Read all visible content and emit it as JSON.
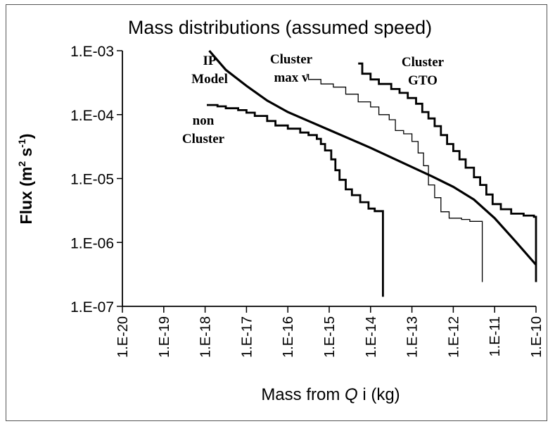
{
  "chart_data": {
    "type": "line",
    "title": "Mass distributions (assumed speed)",
    "xlabel": "Mass from Q i (kg)",
    "xlabel_parts": {
      "prefix": "Mass from ",
      "italic": "Q",
      "suffix": " i (kg)"
    },
    "ylabel": "Flux (m2 s-1)",
    "ylabel_parts": {
      "prefix": "Flux (m",
      "sup1": "2",
      "mid": " s",
      "sup2": "-1",
      "suffix": ")"
    },
    "x_scale": "log10",
    "y_scale": "log10",
    "xlim_log": [
      -20,
      -10
    ],
    "ylim_log": [
      -7,
      -3
    ],
    "x_ticks": [
      {
        "label": "1.E-20",
        "log": -20
      },
      {
        "label": "1.E-19",
        "log": -19
      },
      {
        "label": "1.E-18",
        "log": -18
      },
      {
        "label": "1.E-17",
        "log": -17
      },
      {
        "label": "1.E-16",
        "log": -16
      },
      {
        "label": "1.E-15",
        "log": -15
      },
      {
        "label": "1.E-14",
        "log": -14
      },
      {
        "label": "1.E-13",
        "log": -13
      },
      {
        "label": "1.E-12",
        "log": -12
      },
      {
        "label": "1.E-11",
        "log": -11
      },
      {
        "label": "1.E-10",
        "log": -10
      }
    ],
    "y_ticks": [
      {
        "label": "1.E-03",
        "log": -3
      },
      {
        "label": "1.E-04",
        "log": -4
      },
      {
        "label": "1.E-05",
        "log": -5
      },
      {
        "label": "1.E-06",
        "log": -6
      },
      {
        "label": "1.E-07",
        "log": -7
      }
    ],
    "grid": false,
    "series": [
      {
        "name": "IP Model",
        "label_lines": [
          "IP",
          "Model"
        ],
        "style": "thick-curve",
        "points_log": [
          [
            -17.9,
            -3.0
          ],
          [
            -17.5,
            -3.3
          ],
          [
            -17.0,
            -3.55
          ],
          [
            -16.5,
            -3.78
          ],
          [
            -16.0,
            -3.96
          ],
          [
            -15.5,
            -4.1
          ],
          [
            -15.0,
            -4.24
          ],
          [
            -14.5,
            -4.38
          ],
          [
            -14.0,
            -4.52
          ],
          [
            -13.5,
            -4.67
          ],
          [
            -13.0,
            -4.82
          ],
          [
            -12.5,
            -4.97
          ],
          [
            -12.0,
            -5.13
          ],
          [
            -11.5,
            -5.33
          ],
          [
            -11.0,
            -5.62
          ],
          [
            -10.5,
            -5.98
          ],
          [
            -10.0,
            -6.35
          ]
        ]
      },
      {
        "name": "non Cluster",
        "label_lines": [
          "non",
          "Cluster"
        ],
        "style": "thick-step",
        "points_log": [
          [
            -17.96,
            -3.85
          ],
          [
            -17.7,
            -3.87
          ],
          [
            -17.5,
            -3.9
          ],
          [
            -17.2,
            -3.93
          ],
          [
            -17.0,
            -3.97
          ],
          [
            -16.8,
            -4.02
          ],
          [
            -16.5,
            -4.1
          ],
          [
            -16.3,
            -4.17
          ],
          [
            -16.0,
            -4.22
          ],
          [
            -15.7,
            -4.28
          ],
          [
            -15.5,
            -4.32
          ],
          [
            -15.3,
            -4.38
          ],
          [
            -15.2,
            -4.46
          ],
          [
            -15.1,
            -4.56
          ],
          [
            -14.95,
            -4.7
          ],
          [
            -14.85,
            -4.87
          ],
          [
            -14.75,
            -5.02
          ],
          [
            -14.6,
            -5.17
          ],
          [
            -14.45,
            -5.26
          ],
          [
            -14.25,
            -5.37
          ],
          [
            -14.05,
            -5.47
          ],
          [
            -13.9,
            -5.51
          ],
          [
            -13.7,
            -5.51
          ],
          [
            -13.7,
            -6.85
          ]
        ]
      },
      {
        "name": "Cluster max v",
        "label_lines": [
          "Cluster",
          "max v"
        ],
        "style": "thin-step",
        "points_log": [
          [
            -15.55,
            -3.37
          ],
          [
            -15.5,
            -3.45
          ],
          [
            -15.2,
            -3.52
          ],
          [
            -14.9,
            -3.57
          ],
          [
            -14.6,
            -3.68
          ],
          [
            -14.3,
            -3.8
          ],
          [
            -14.0,
            -3.88
          ],
          [
            -13.8,
            -4.0
          ],
          [
            -13.55,
            -4.08
          ],
          [
            -13.4,
            -4.25
          ],
          [
            -13.2,
            -4.3
          ],
          [
            -13.0,
            -4.42
          ],
          [
            -12.85,
            -4.6
          ],
          [
            -12.72,
            -4.8
          ],
          [
            -12.6,
            -5.1
          ],
          [
            -12.45,
            -5.3
          ],
          [
            -12.3,
            -5.52
          ],
          [
            -12.1,
            -5.62
          ],
          [
            -11.8,
            -5.64
          ],
          [
            -11.6,
            -5.67
          ],
          [
            -11.3,
            -5.68
          ],
          [
            -11.3,
            -6.62
          ]
        ]
      },
      {
        "name": "Cluster GTO",
        "label_lines": [
          "Cluster",
          "GTO"
        ],
        "style": "thick-step",
        "points_log": [
          [
            -14.3,
            -3.2
          ],
          [
            -14.2,
            -3.36
          ],
          [
            -14.0,
            -3.45
          ],
          [
            -13.8,
            -3.52
          ],
          [
            -13.5,
            -3.6
          ],
          [
            -13.3,
            -3.66
          ],
          [
            -13.1,
            -3.74
          ],
          [
            -12.9,
            -3.83
          ],
          [
            -12.75,
            -3.96
          ],
          [
            -12.6,
            -4.06
          ],
          [
            -12.45,
            -4.18
          ],
          [
            -12.3,
            -4.32
          ],
          [
            -12.15,
            -4.46
          ],
          [
            -12.0,
            -4.57
          ],
          [
            -11.85,
            -4.7
          ],
          [
            -11.7,
            -4.83
          ],
          [
            -11.5,
            -4.98
          ],
          [
            -11.35,
            -5.1
          ],
          [
            -11.2,
            -5.25
          ],
          [
            -11.05,
            -5.4
          ],
          [
            -10.85,
            -5.48
          ],
          [
            -10.6,
            -5.55
          ],
          [
            -10.3,
            -5.58
          ],
          [
            -10.05,
            -5.6
          ],
          [
            -10.0,
            -5.62
          ],
          [
            -10.0,
            -6.62
          ]
        ]
      }
    ]
  }
}
